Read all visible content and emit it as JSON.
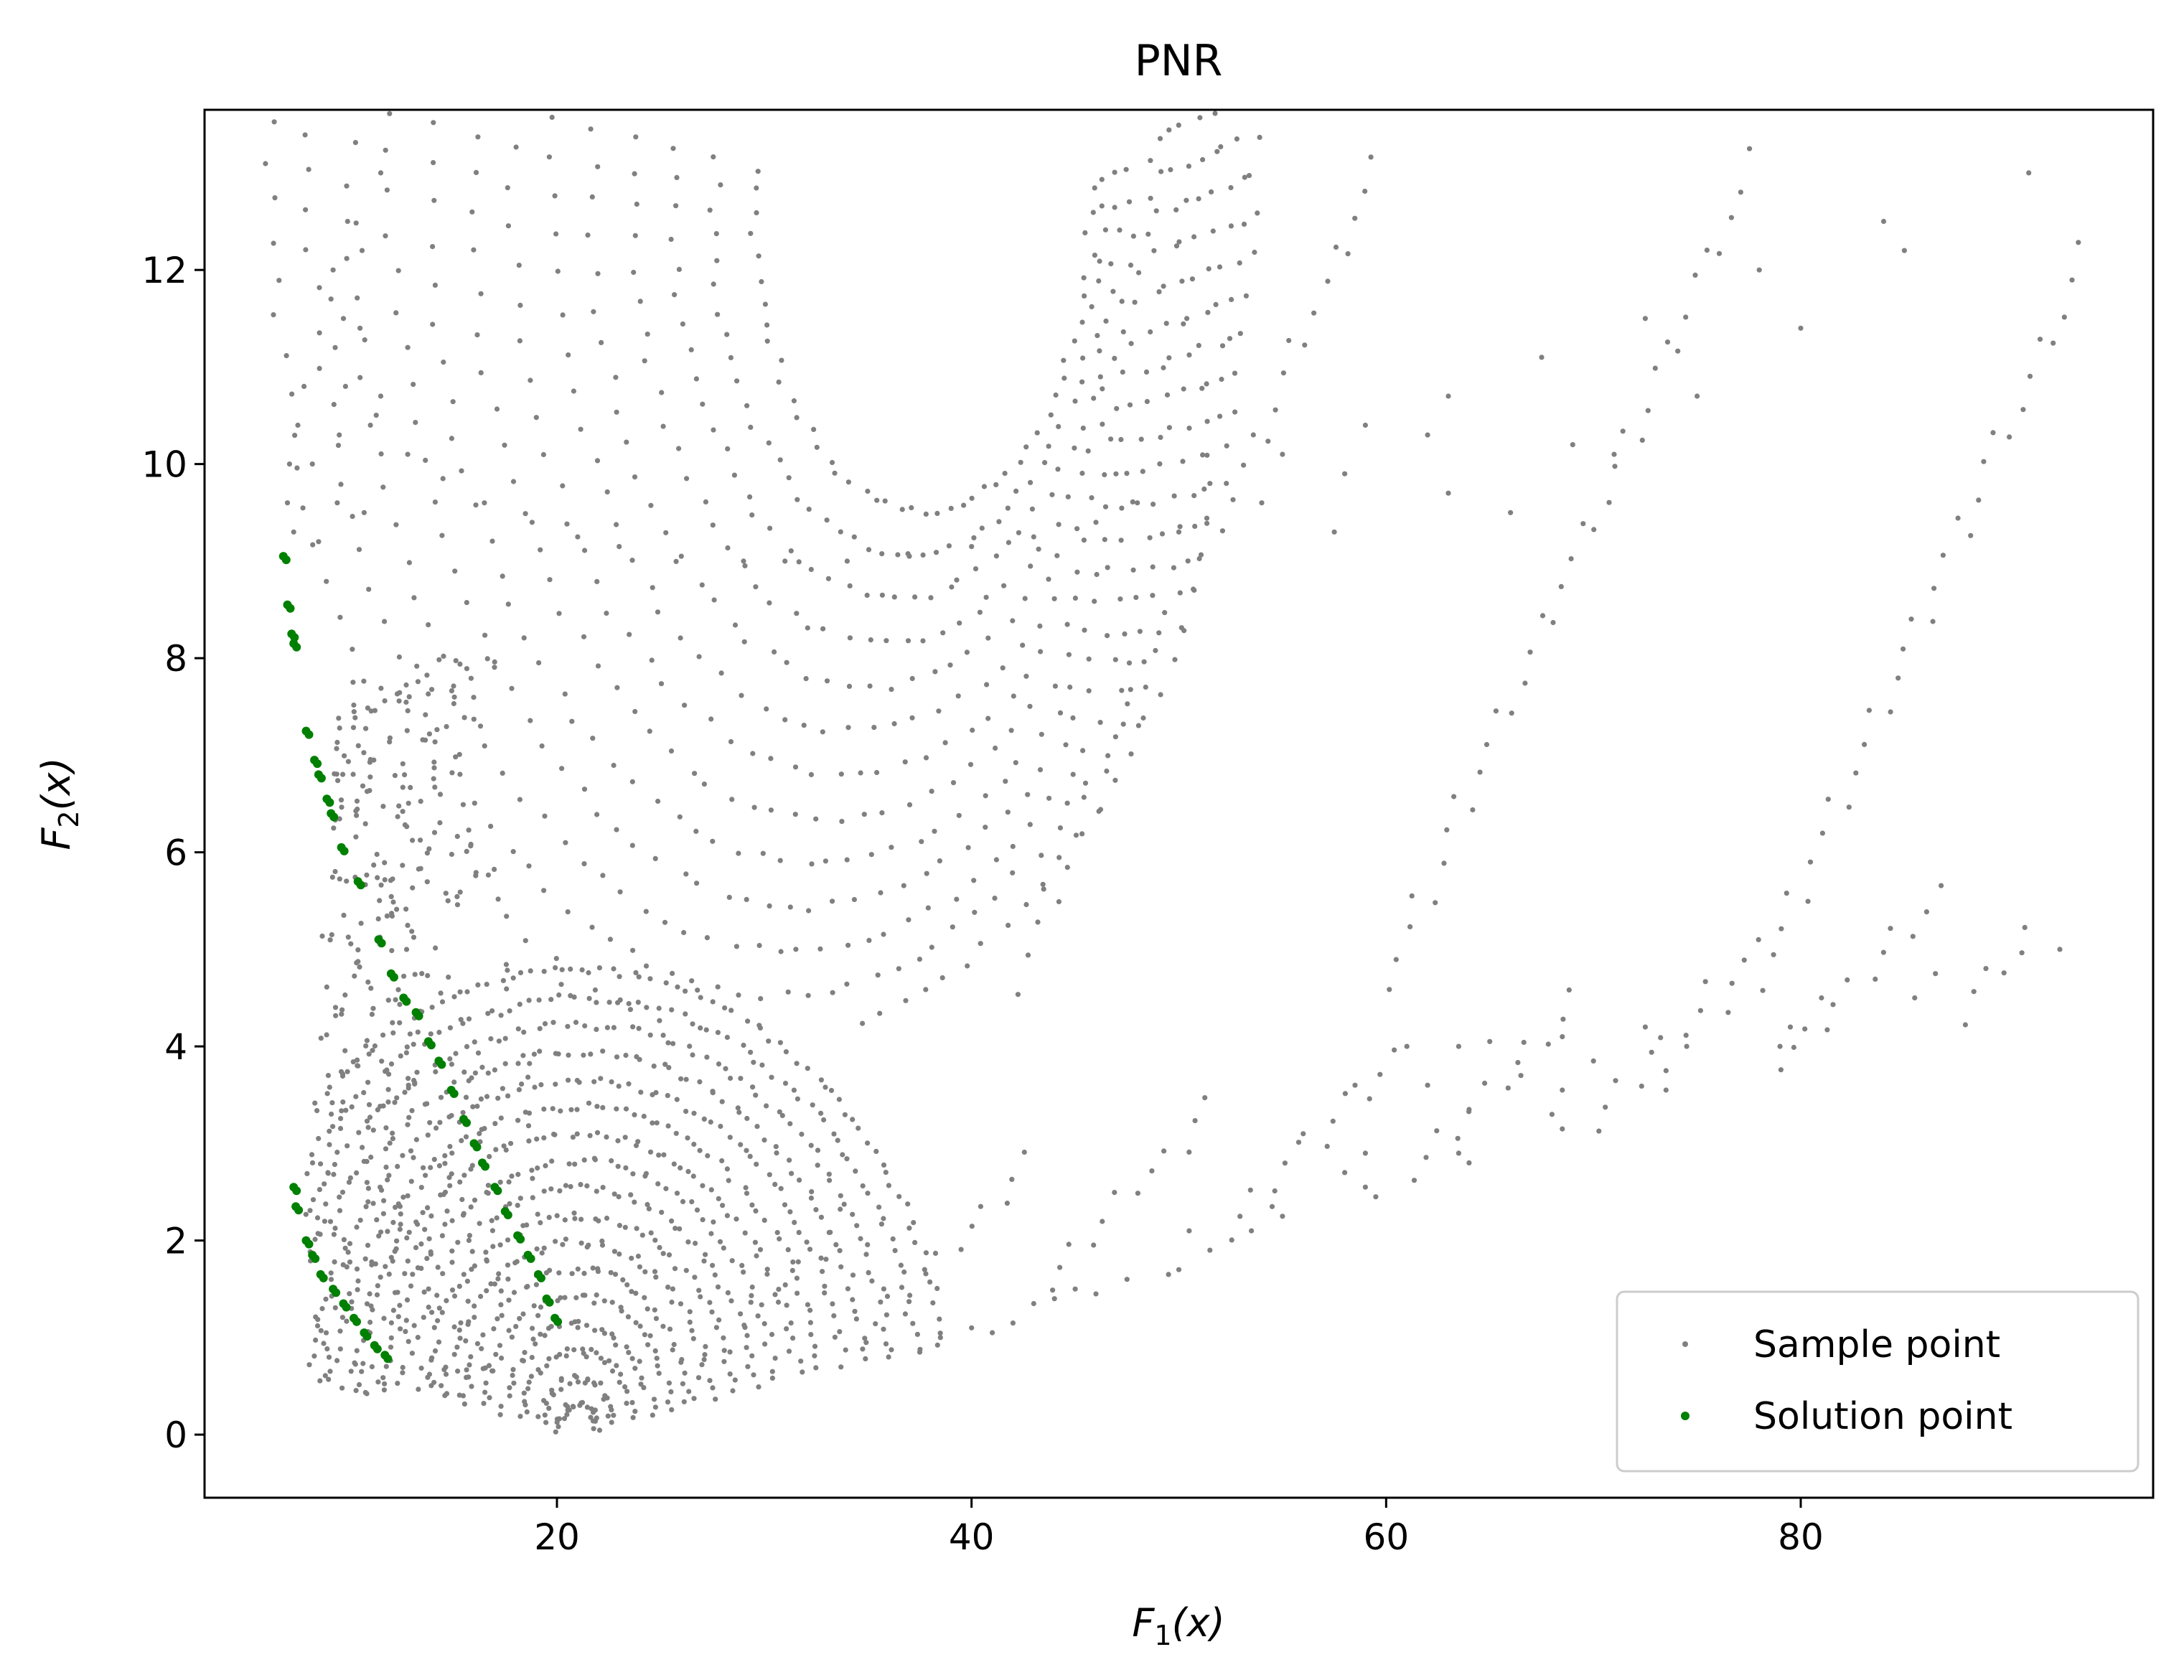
{
  "chart_data": {
    "type": "scatter",
    "title": "PNR",
    "xlabel_main": "F",
    "xlabel_sub": "1",
    "xlabel_tail": "(x)",
    "ylabel_main": "F",
    "ylabel_sub": "2",
    "ylabel_tail": "(x)",
    "xlim": [
      3,
      97
    ],
    "ylim": [
      -0.65,
      13.65
    ],
    "xticks": [
      20,
      40,
      60,
      80
    ],
    "yticks": [
      0,
      2,
      4,
      6,
      8,
      10,
      12
    ],
    "legend_position": "lower-right",
    "series": [
      {
        "name": "Sample point",
        "color": "#808080",
        "marker_size": "small",
        "generated": "grid of sample points over the feasible region (F1 from about 6.5 to 92.5, F2 from 0 to 13)"
      },
      {
        "name": "Solution point",
        "color": "#008000",
        "marker_size": "medium",
        "points": [
          [
            6.8,
            9.05
          ],
          [
            7.0,
            8.55
          ],
          [
            7.2,
            8.25
          ],
          [
            7.3,
            8.15
          ],
          [
            7.9,
            7.25
          ],
          [
            8.3,
            6.95
          ],
          [
            8.5,
            6.8
          ],
          [
            8.9,
            6.55
          ],
          [
            9.1,
            6.4
          ],
          [
            9.6,
            6.05
          ],
          [
            10.4,
            5.7
          ],
          [
            11.4,
            5.1
          ],
          [
            12.0,
            4.75
          ],
          [
            12.6,
            4.5
          ],
          [
            13.2,
            4.35
          ],
          [
            13.8,
            4.05
          ],
          [
            14.3,
            3.85
          ],
          [
            14.9,
            3.55
          ],
          [
            15.5,
            3.25
          ],
          [
            16.0,
            3.0
          ],
          [
            16.4,
            2.8
          ],
          [
            17.0,
            2.55
          ],
          [
            17.5,
            2.3
          ],
          [
            18.1,
            2.05
          ],
          [
            18.6,
            1.85
          ],
          [
            19.1,
            1.65
          ],
          [
            19.5,
            1.4
          ],
          [
            19.9,
            1.2
          ],
          [
            7.3,
            2.55
          ],
          [
            7.4,
            2.35
          ],
          [
            7.9,
            2.0
          ],
          [
            8.2,
            1.85
          ],
          [
            8.6,
            1.65
          ],
          [
            9.2,
            1.5
          ],
          [
            9.7,
            1.35
          ],
          [
            10.2,
            1.2
          ],
          [
            10.7,
            1.05
          ],
          [
            11.2,
            0.92
          ],
          [
            11.7,
            0.82
          ]
        ]
      }
    ]
  }
}
